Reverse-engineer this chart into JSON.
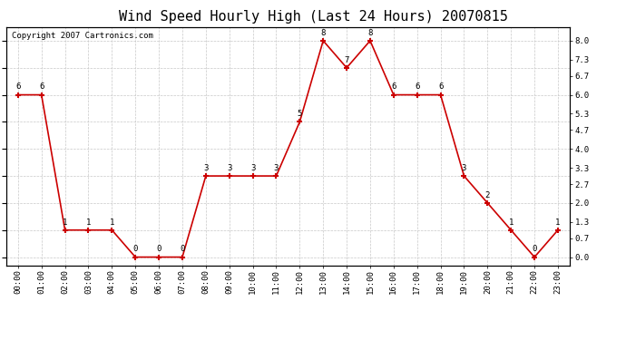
{
  "title": "Wind Speed Hourly High (Last 24 Hours) 20070815",
  "copyright": "Copyright 2007 Cartronics.com",
  "hours": [
    "00:00",
    "01:00",
    "02:00",
    "03:00",
    "04:00",
    "05:00",
    "06:00",
    "07:00",
    "08:00",
    "09:00",
    "10:00",
    "11:00",
    "12:00",
    "13:00",
    "14:00",
    "15:00",
    "16:00",
    "17:00",
    "18:00",
    "19:00",
    "20:00",
    "21:00",
    "22:00",
    "23:00"
  ],
  "values": [
    6,
    6,
    1,
    1,
    1,
    0,
    0,
    0,
    3,
    3,
    3,
    3,
    5,
    8,
    7,
    8,
    6,
    6,
    6,
    3,
    2,
    1,
    0,
    1
  ],
  "line_color": "#cc0000",
  "marker_color": "#cc0000",
  "bg_color": "#ffffff",
  "grid_color": "#c8c8c8",
  "title_color": "#000000",
  "yticks": [
    0.0,
    0.7,
    1.3,
    2.0,
    2.7,
    3.3,
    4.0,
    4.7,
    5.3,
    6.0,
    6.7,
    7.3,
    8.0
  ],
  "ylim": [
    -0.3,
    8.5
  ],
  "title_fontsize": 11,
  "label_fontsize": 6.5,
  "copyright_fontsize": 6.5,
  "value_fontsize": 6.5
}
